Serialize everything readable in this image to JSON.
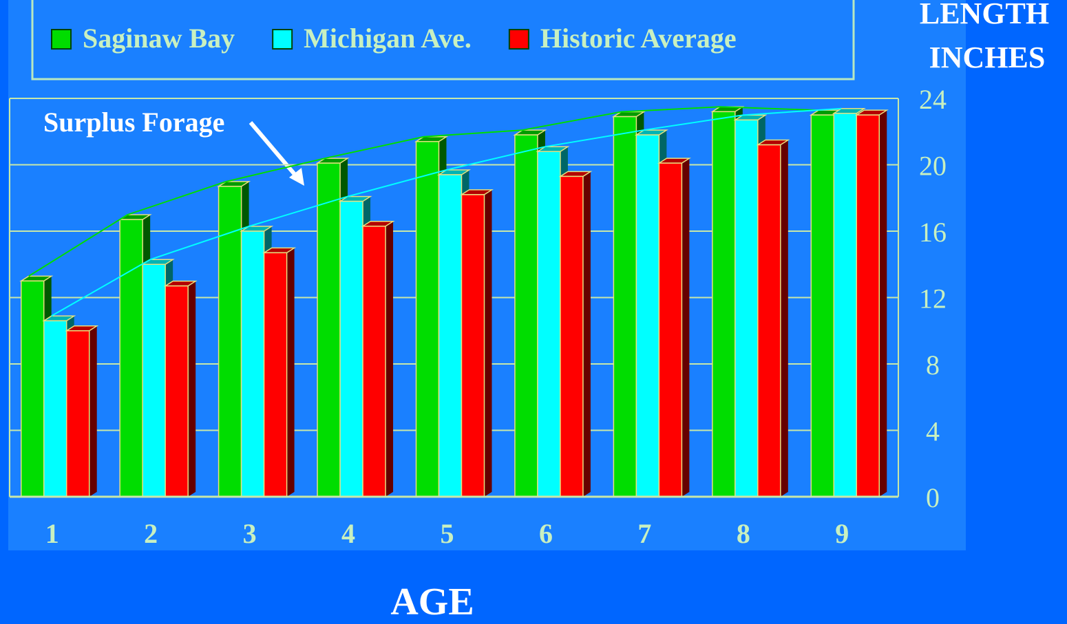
{
  "chart_data": {
    "type": "bar3d",
    "ylabel": [
      "LENGTH",
      "INCHES"
    ],
    "xlabel": "AGE",
    "annotation": "Surplus Forage",
    "categories": [
      "1",
      "2",
      "3",
      "4",
      "5",
      "6",
      "7",
      "8",
      "9"
    ],
    "series": [
      {
        "name": "Saginaw Bay",
        "color": "#00dd00",
        "outline": true,
        "values": [
          13.0,
          16.7,
          18.7,
          20.1,
          21.4,
          21.8,
          22.9,
          23.2,
          23.0
        ]
      },
      {
        "name": "Michigan Ave.",
        "color": "#00ffff",
        "outline": true,
        "values": [
          10.6,
          14.0,
          16.0,
          17.8,
          19.4,
          20.8,
          21.8,
          22.7,
          23.1
        ]
      },
      {
        "name": "Historic Average",
        "color": "#ff0000",
        "outline": false,
        "values": [
          10.0,
          12.7,
          14.7,
          16.3,
          18.2,
          19.3,
          20.1,
          21.2,
          23.0
        ]
      }
    ],
    "ylim": [
      0,
      24
    ],
    "yticks": [
      0,
      4,
      8,
      12,
      16,
      20,
      24
    ],
    "grid": true,
    "yaxis_side": "right"
  }
}
